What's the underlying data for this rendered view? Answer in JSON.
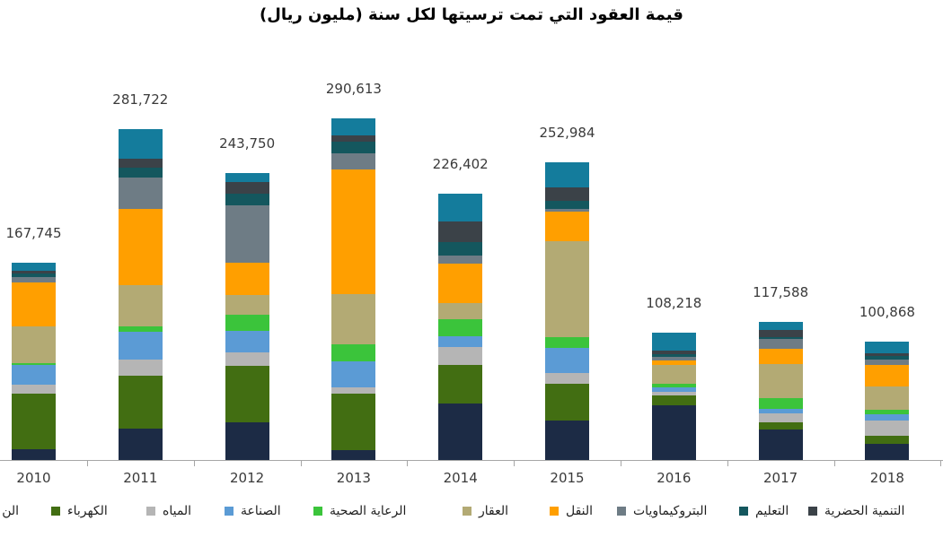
{
  "title": "قيمة العقود التي تمت ترسيتها لكل سنة (مليون ريال)",
  "chart_data": {
    "type": "bar",
    "stacked": true,
    "orientation": "vertical",
    "categories": [
      "2010",
      "2011",
      "2012",
      "2013",
      "2014",
      "2015",
      "2016",
      "2017",
      "2018"
    ],
    "totals": [
      167745,
      281722,
      243750,
      290613,
      226402,
      252984,
      108218,
      117588,
      100868
    ],
    "totals_formatted": [
      "167,745",
      "281,722",
      "243,750",
      "290,613",
      "226,402",
      "252,984",
      "108,218",
      "117,588",
      "100,868"
    ],
    "value_unit": "مليون ريال",
    "legend_position": "bottom",
    "gridlines": false,
    "y_axis_visible": false,
    "series": [
      {
        "name": "الن",
        "clipped": "left",
        "color": "#1c2b45",
        "values": [
          9200,
          26700,
          32000,
          8400,
          48000,
          33600,
          46500,
          26000,
          13700
        ]
      },
      {
        "name": "الكهرباء",
        "color": "#426e12",
        "values": [
          47300,
          45000,
          48000,
          48000,
          32800,
          31300,
          8400,
          6100,
          6900
        ]
      },
      {
        "name": "المياه",
        "color": "#b5b5b5",
        "values": [
          7600,
          13700,
          11400,
          5300,
          15300,
          9200,
          3100,
          7600,
          13000
        ]
      },
      {
        "name": "الصناعة",
        "color": "#5b9bd5",
        "values": [
          16800,
          23600,
          18300,
          22100,
          9200,
          21400,
          3800,
          3800,
          5300
        ]
      },
      {
        "name": "الرعاية الصحية",
        "color": "#3bc43b",
        "values": [
          1500,
          4600,
          13700,
          14500,
          14500,
          9200,
          3100,
          9200,
          3800
        ]
      },
      {
        "name": "العقار",
        "color": "#b3aa74",
        "values": [
          31300,
          35100,
          16800,
          42700,
          13700,
          81600,
          16000,
          29000,
          19800
        ]
      },
      {
        "name": "النقل",
        "color": "#ff9f00",
        "values": [
          37400,
          64800,
          27500,
          106000,
          33600,
          25200,
          3800,
          13000,
          18300
        ]
      },
      {
        "name": "البتروكيماويات",
        "color": "#6e7c85",
        "values": [
          4600,
          26700,
          48800,
          13700,
          6900,
          2300,
          3100,
          8400,
          4600
        ]
      },
      {
        "name": "التعليم",
        "color": "#14575e",
        "values": [
          3000,
          8400,
          9900,
          9900,
          11400,
          6900,
          2300,
          1500,
          3100
        ]
      },
      {
        "name": "التنمية الحضرية",
        "color": "#3b4248",
        "values": [
          2300,
          7600,
          9900,
          5300,
          17500,
          11400,
          3100,
          6100,
          2300
        ]
      },
      {
        "name": "",
        "clipped": "right",
        "color": "#147c9c",
        "values": [
          6745,
          25522,
          7450,
          14713,
          23502,
          20884,
          15018,
          6888,
          10068
        ]
      }
    ]
  },
  "legend": {
    "items": [
      {
        "label": "الن",
        "color": "#1c2b45",
        "clipped": "left"
      },
      {
        "label": "الكهرباء",
        "color": "#426e12"
      },
      {
        "label": "المياه",
        "color": "#b5b5b5"
      },
      {
        "label": "الصناعة",
        "color": "#5b9bd5"
      },
      {
        "label": "الرعاية الصحية",
        "color": "#3bc43b"
      },
      {
        "label": "العقار",
        "color": "#b3aa74"
      },
      {
        "label": "النقل",
        "color": "#ff9f00"
      },
      {
        "label": "البتروكيماويات",
        "color": "#6e7c85"
      },
      {
        "label": "التعليم",
        "color": "#14575e"
      },
      {
        "label": "التنمية الحضرية",
        "color": "#3b4248"
      }
    ]
  }
}
